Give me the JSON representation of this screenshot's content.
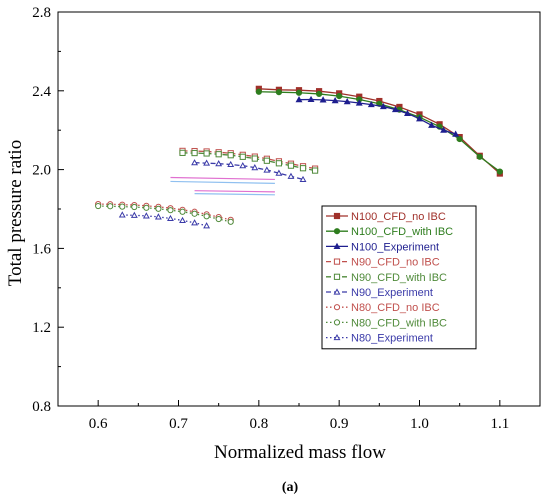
{
  "chart_data": {
    "type": "line",
    "caption": "(a)",
    "xlabel": "Normalized mass flow",
    "ylabel": "Total pressure ratio",
    "xlim": [
      0.55,
      1.15
    ],
    "ylim": [
      0.8,
      2.8
    ],
    "x_ticks": [
      "0.6",
      "0.7",
      "0.8",
      "0.9",
      "1.0",
      "1.1"
    ],
    "y_ticks": [
      "0.8",
      "1.2",
      "1.6",
      "2.0",
      "2.4",
      "2.8"
    ],
    "grid": false,
    "legend_position": "lower-right",
    "series": [
      {
        "name": "N100_CFD_no IBC",
        "color": "#a0302a",
        "line": "solid",
        "marker": "square-filled",
        "x": [
          0.8,
          0.825,
          0.85,
          0.875,
          0.9,
          0.925,
          0.95,
          0.975,
          1.0,
          1.025,
          1.05,
          1.075,
          1.1
        ],
        "y": [
          2.41,
          2.405,
          2.403,
          2.398,
          2.387,
          2.37,
          2.348,
          2.318,
          2.28,
          2.23,
          2.165,
          2.07,
          1.98
        ]
      },
      {
        "name": "N100_CFD_with IBC",
        "color": "#2e7d1e",
        "line": "solid",
        "marker": "circle-filled",
        "x": [
          0.8,
          0.825,
          0.85,
          0.875,
          0.9,
          0.925,
          0.95,
          0.975,
          1.0,
          1.025,
          1.05,
          1.075,
          1.1
        ],
        "y": [
          2.395,
          2.393,
          2.39,
          2.384,
          2.373,
          2.356,
          2.334,
          2.304,
          2.266,
          2.218,
          2.155,
          2.065,
          1.99
        ]
      },
      {
        "name": "N100_Experiment",
        "color": "#1f1f8f",
        "line": "solid",
        "marker": "triangle-filled",
        "x": [
          0.85,
          0.865,
          0.88,
          0.895,
          0.91,
          0.925,
          0.94,
          0.955,
          0.97,
          0.985,
          1.0,
          1.015,
          1.03,
          1.045
        ],
        "y": [
          2.355,
          2.356,
          2.354,
          2.35,
          2.345,
          2.338,
          2.33,
          2.32,
          2.305,
          2.285,
          2.258,
          2.225,
          2.2,
          2.18
        ]
      },
      {
        "name": "N90_CFD_no IBC",
        "color": "#c0504d",
        "line": "dash",
        "marker": "square-open",
        "x": [
          0.705,
          0.72,
          0.735,
          0.75,
          0.765,
          0.78,
          0.795,
          0.81,
          0.825,
          0.84,
          0.855,
          0.87
        ],
        "y": [
          2.095,
          2.094,
          2.092,
          2.088,
          2.083,
          2.075,
          2.066,
          2.055,
          2.042,
          2.03,
          2.017,
          2.005
        ]
      },
      {
        "name": "N90_CFD_with IBC",
        "color": "#4f8a3a",
        "line": "dash",
        "marker": "square-open",
        "x": [
          0.705,
          0.72,
          0.735,
          0.75,
          0.765,
          0.78,
          0.795,
          0.81,
          0.825,
          0.84,
          0.855,
          0.87
        ],
        "y": [
          2.085,
          2.084,
          2.082,
          2.078,
          2.073,
          2.065,
          2.056,
          2.045,
          2.032,
          2.02,
          2.007,
          1.995
        ]
      },
      {
        "name": "N90_Experiment",
        "color": "#3a3aa8",
        "line": "dash",
        "marker": "triangle-open",
        "x": [
          0.72,
          0.735,
          0.75,
          0.765,
          0.78,
          0.795,
          0.81,
          0.825,
          0.84,
          0.855
        ],
        "y": [
          2.035,
          2.033,
          2.03,
          2.026,
          2.02,
          2.01,
          1.998,
          1.982,
          1.966,
          1.95
        ]
      },
      {
        "name": "N80_CFD_no IBC",
        "color": "#c0504d",
        "line": "dot",
        "marker": "circle-open",
        "x": [
          0.6,
          0.615,
          0.63,
          0.645,
          0.66,
          0.675,
          0.69,
          0.705,
          0.72,
          0.735,
          0.75,
          0.765
        ],
        "y": [
          1.825,
          1.824,
          1.822,
          1.82,
          1.816,
          1.811,
          1.804,
          1.796,
          1.786,
          1.773,
          1.759,
          1.745
        ]
      },
      {
        "name": "N80_CFD_with IBC",
        "color": "#4f8a3a",
        "line": "dot",
        "marker": "circle-open",
        "x": [
          0.6,
          0.615,
          0.63,
          0.645,
          0.66,
          0.675,
          0.69,
          0.705,
          0.72,
          0.735,
          0.75,
          0.765
        ],
        "y": [
          1.815,
          1.814,
          1.812,
          1.81,
          1.806,
          1.801,
          1.794,
          1.786,
          1.776,
          1.763,
          1.749,
          1.735
        ]
      },
      {
        "name": "N80_Experiment",
        "color": "#3a3aa8",
        "line": "dot",
        "marker": "triangle-open",
        "x": [
          0.63,
          0.645,
          0.66,
          0.675,
          0.69,
          0.705,
          0.72,
          0.735
        ],
        "y": [
          1.77,
          1.768,
          1.765,
          1.76,
          1.752,
          1.742,
          1.73,
          1.715
        ]
      }
    ],
    "extra_lines": [
      {
        "color": "#e070d0",
        "x": [
          0.69,
          0.82
        ],
        "y": [
          1.96,
          1.95
        ]
      },
      {
        "color": "#90c0f0",
        "x": [
          0.69,
          0.82
        ],
        "y": [
          1.94,
          1.93
        ]
      },
      {
        "color": "#e070d0",
        "x": [
          0.72,
          0.82
        ],
        "y": [
          1.893,
          1.887
        ]
      },
      {
        "color": "#90c0f0",
        "x": [
          0.72,
          0.82
        ],
        "y": [
          1.878,
          1.872
        ]
      }
    ]
  }
}
